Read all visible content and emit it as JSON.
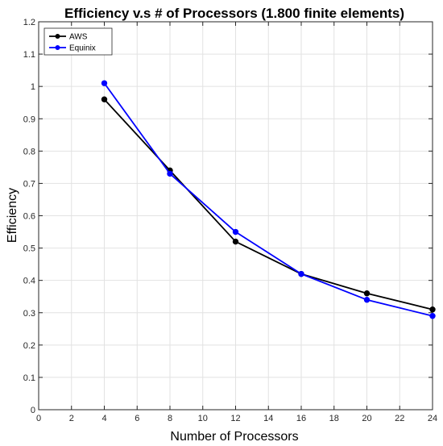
{
  "chart_data": {
    "type": "line",
    "title": "Efficiency v.s # of Processors (1.800 finite elements)",
    "xlabel": "Number of Processors",
    "ylabel": "Efficiency",
    "xlim": [
      0,
      24
    ],
    "ylim": [
      0,
      1.2
    ],
    "xticks": [
      0,
      2,
      4,
      6,
      8,
      10,
      12,
      14,
      16,
      18,
      20,
      22,
      24
    ],
    "yticks": [
      0,
      0.1,
      0.2,
      0.3,
      0.4,
      0.5,
      0.6,
      0.7,
      0.8,
      0.9,
      1,
      1.1,
      1.2
    ],
    "grid": true,
    "legend_position": "top-left",
    "series": [
      {
        "name": "AWS",
        "color": "#000000",
        "x": [
          4,
          8,
          12,
          16,
          20,
          24
        ],
        "y": [
          0.96,
          0.74,
          0.52,
          0.42,
          0.36,
          0.31
        ]
      },
      {
        "name": "Equinix",
        "color": "#0000ff",
        "x": [
          4,
          8,
          12,
          16,
          20,
          24
        ],
        "y": [
          1.01,
          0.73,
          0.55,
          0.42,
          0.34,
          0.29
        ]
      }
    ]
  }
}
